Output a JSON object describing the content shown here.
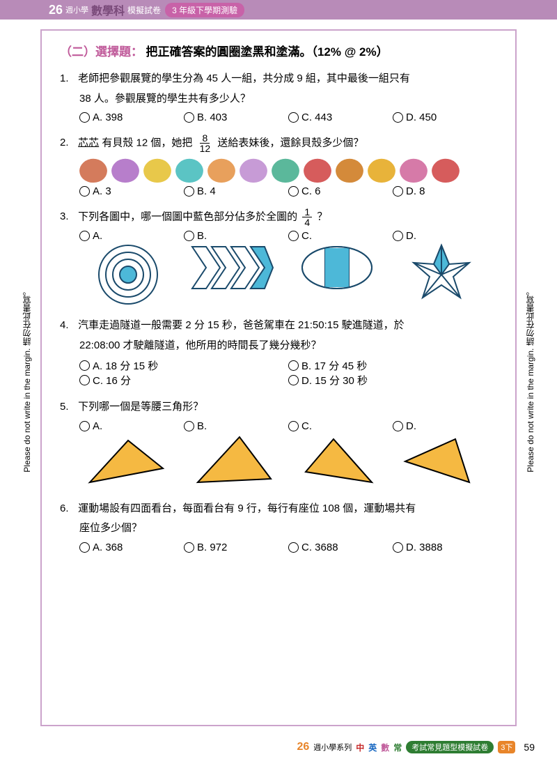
{
  "header": {
    "brand_num": "26",
    "brand_small": "週小學",
    "subject": "數學科",
    "tag": "模擬試卷",
    "pill": "3 年級下學期測驗"
  },
  "section": {
    "label": "（二）選擇題：",
    "instr": "把正確答案的圓圈塗黑和塗滿。（12%  @  2%）"
  },
  "q1": {
    "num": "1.",
    "line1": "老師把參觀展覽的學生分為 45 人一組，共分成 9 組，其中最後一組只有",
    "line2": "38 人。參觀展覽的學生共有多少人？",
    "a": "A. 398",
    "b": "B. 403",
    "c": "C. 443",
    "d": "D. 450"
  },
  "q2": {
    "num": "2.",
    "name": "芯芯",
    "t1": "有貝殼 12 個，她把",
    "frac_n": "8",
    "frac_d": "12",
    "t2": "送給表妹後，還餘貝殼多少個？",
    "a": "A. 3",
    "b": "B. 4",
    "c": "C. 6",
    "d": "D. 8",
    "shell_colors": [
      "#d47b5c",
      "#b77ecb",
      "#e8c84a",
      "#5bc4c4",
      "#e8a05c",
      "#c79bd6",
      "#5bb89b",
      "#d65c5c",
      "#d48a3a",
      "#e8b33a",
      "#d67aa8",
      "#d65c5c"
    ]
  },
  "q3": {
    "num": "3.",
    "t1": "下列各圖中，哪一個圖中藍色部分佔多於全圖的",
    "frac_n": "1",
    "frac_d": "4",
    "t2": "？",
    "a": "A.",
    "b": "B.",
    "c": "C.",
    "d": "D.",
    "blue": "#4db8d8",
    "stroke": "#1a4a6b"
  },
  "q4": {
    "num": "4.",
    "line1": "汽車走過隧道一般需要 2 分 15 秒，爸爸駕車在 21:50:15 駛進隧道，於",
    "line2": "22:08:00 才駛離隧道，他所用的時間長了幾分幾秒？",
    "a": "A. 18 分 15 秒",
    "b": "B. 17 分 45 秒",
    "c": "C. 16 分",
    "d": "D. 15 分 30 秒"
  },
  "q5": {
    "num": "5.",
    "text": "下列哪一個是等腰三角形？",
    "a": "A.",
    "b": "B.",
    "c": "C.",
    "d": "D.",
    "fill": "#f5b942",
    "stroke": "#000"
  },
  "q6": {
    "num": "6.",
    "line1": "運動場設有四面看台，每面看台有 9 行，每行有座位 108 個，運動場共有",
    "line2": "座位多少個？",
    "a": "A. 368",
    "b": "B. 972",
    "c": "C. 3688",
    "d": "D. 3888"
  },
  "margin": "Please do not write in the margin.  請勿在此書寫。",
  "footer": {
    "b26": "26",
    "series": "週小學系列",
    "ch": "中",
    "en": "英",
    "ma": "數",
    "ge": "常",
    "pill": "考試常見題型模擬試卷",
    "badge": "3下",
    "page": "59"
  }
}
